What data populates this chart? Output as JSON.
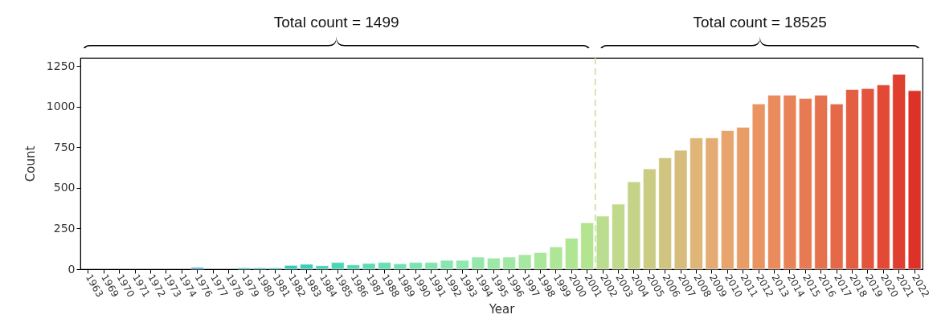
{
  "chart_data": {
    "type": "bar",
    "xlabel": "Year",
    "ylabel": "Count",
    "categories": [
      "1963",
      "1969",
      "1970",
      "1971",
      "1972",
      "1973",
      "1974",
      "1976",
      "1977",
      "1978",
      "1979",
      "1980",
      "1981",
      "1982",
      "1983",
      "1984",
      "1985",
      "1986",
      "1987",
      "1988",
      "1989",
      "1990",
      "1991",
      "1992",
      "1993",
      "1994",
      "1995",
      "1996",
      "1997",
      "1998",
      "1999",
      "2000",
      "2001",
      "2002",
      "2003",
      "2004",
      "2005",
      "2006",
      "2007",
      "2008",
      "2009",
      "2010",
      "2011",
      "2012",
      "2013",
      "2014",
      "2015",
      "2016",
      "2017",
      "2018",
      "2019",
      "2020",
      "2021",
      "2022"
    ],
    "values": [
      null,
      null,
      null,
      null,
      null,
      null,
      null,
      10,
      null,
      null,
      8,
      8,
      8,
      23,
      30,
      21,
      41,
      26,
      35,
      41,
      33,
      41,
      41,
      54,
      54,
      74,
      68,
      74,
      89,
      102,
      137,
      190,
      285,
      326,
      400,
      537,
      617,
      685,
      731,
      807,
      807,
      853,
      873,
      1016,
      1070,
      1070,
      1050,
      1070,
      1016,
      1105,
      1111,
      1133,
      1199,
      1098
    ],
    "colors": [
      "#3b3fbf",
      "#3a4fc6",
      "#385ccc",
      "#3569d2",
      "#3276d6",
      "#2e83d9",
      "#2a90db",
      "#269cd9",
      "#23a7d5",
      "#22b1d0",
      "#22b9cb",
      "#24c0c6",
      "#29c6c2",
      "#30cbbe",
      "#38cfbb",
      "#41d3b9",
      "#4ad6b7",
      "#53d9b5",
      "#5cdcb4",
      "#65dfb3",
      "#6ee2b2",
      "#77e4b1",
      "#80e6b0",
      "#88e7af",
      "#8fe8ad",
      "#96e8aa",
      "#9ce8a7",
      "#a1e8a3",
      "#a6e89f",
      "#aae79b",
      "#ade697",
      "#b0e593",
      "#b3e48f",
      "#badd90",
      "#c0d98c",
      "#c5d388",
      "#cacc84",
      "#cfc580",
      "#d7bd7c",
      "#dfb678",
      "#e4ac72",
      "#e7a56d",
      "#e89d67",
      "#e99461",
      "#e98b5c",
      "#e88257",
      "#e77a52",
      "#e6714d",
      "#e56848",
      "#e45e42",
      "#e3543c",
      "#e24a36",
      "#e03e2f",
      "#de3128"
    ],
    "ylim": [
      0,
      1300
    ],
    "yticks": [
      0,
      250,
      500,
      750,
      1000,
      1250
    ],
    "grid": false,
    "ref_lines": [
      {
        "axis": "x",
        "value": "2002",
        "color": "#c5dd95",
        "line_style": "dashed"
      }
    ],
    "annotations": [
      "Total count = 1499",
      "Total count = 18525"
    ]
  }
}
